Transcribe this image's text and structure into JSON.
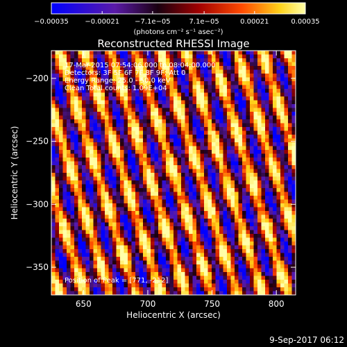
{
  "chart_data": {
    "type": "heatmap",
    "title": "Reconstructed RHESSI Image",
    "xlabel": "Heliocentric X (arcsec)",
    "ylabel": "Heliocentric Y (arcsec)",
    "xlim": [
      625,
      815
    ],
    "ylim": [
      -372,
      -178
    ],
    "x_ticks": [
      650,
      700,
      750,
      800
    ],
    "x_tick_labels": [
      "650",
      "700",
      "750",
      "800"
    ],
    "y_ticks": [
      -350,
      -300,
      -250,
      -200
    ],
    "y_tick_labels": [
      "−350",
      "−300",
      "−250",
      "−200"
    ],
    "grid": false,
    "pattern": "diagonal alternating stripes (interference fringes) spanning the image",
    "colorbar": {
      "min": -0.00035,
      "max": 0.00035,
      "ticks": [
        -0.00035,
        -0.00021,
        -7.1e-05,
        7.1e-05,
        0.00021,
        0.00035
      ],
      "tick_labels": [
        "−0.00035",
        "−0.00021",
        "−7.1e−05",
        "7.1e−05",
        "0.00021",
        "0.00035"
      ],
      "unit_label": "(photons cm⁻² s⁻¹ asec⁻²)",
      "colormap": [
        "#0000ff",
        "#5a1aa8",
        "#1a0010",
        "#a00000",
        "#ff4a00",
        "#ffd21a",
        "#ffffa8"
      ]
    },
    "annotations": {
      "time_range": "17-Mar-2015 07:54:06.000 to 08:04:00.000",
      "detectors": "Detectors: 3F 5F 6F 7F 8F 9F; Att 0",
      "energy_range": "Energy Range: 25.0 - 50.0 keV",
      "clean_counts": "Clean    Total counts: 1.09E+04",
      "peak_position": "Position of Peak = [771, -212]"
    },
    "footer_timestamp": "9-Sep-2017 06:12"
  }
}
